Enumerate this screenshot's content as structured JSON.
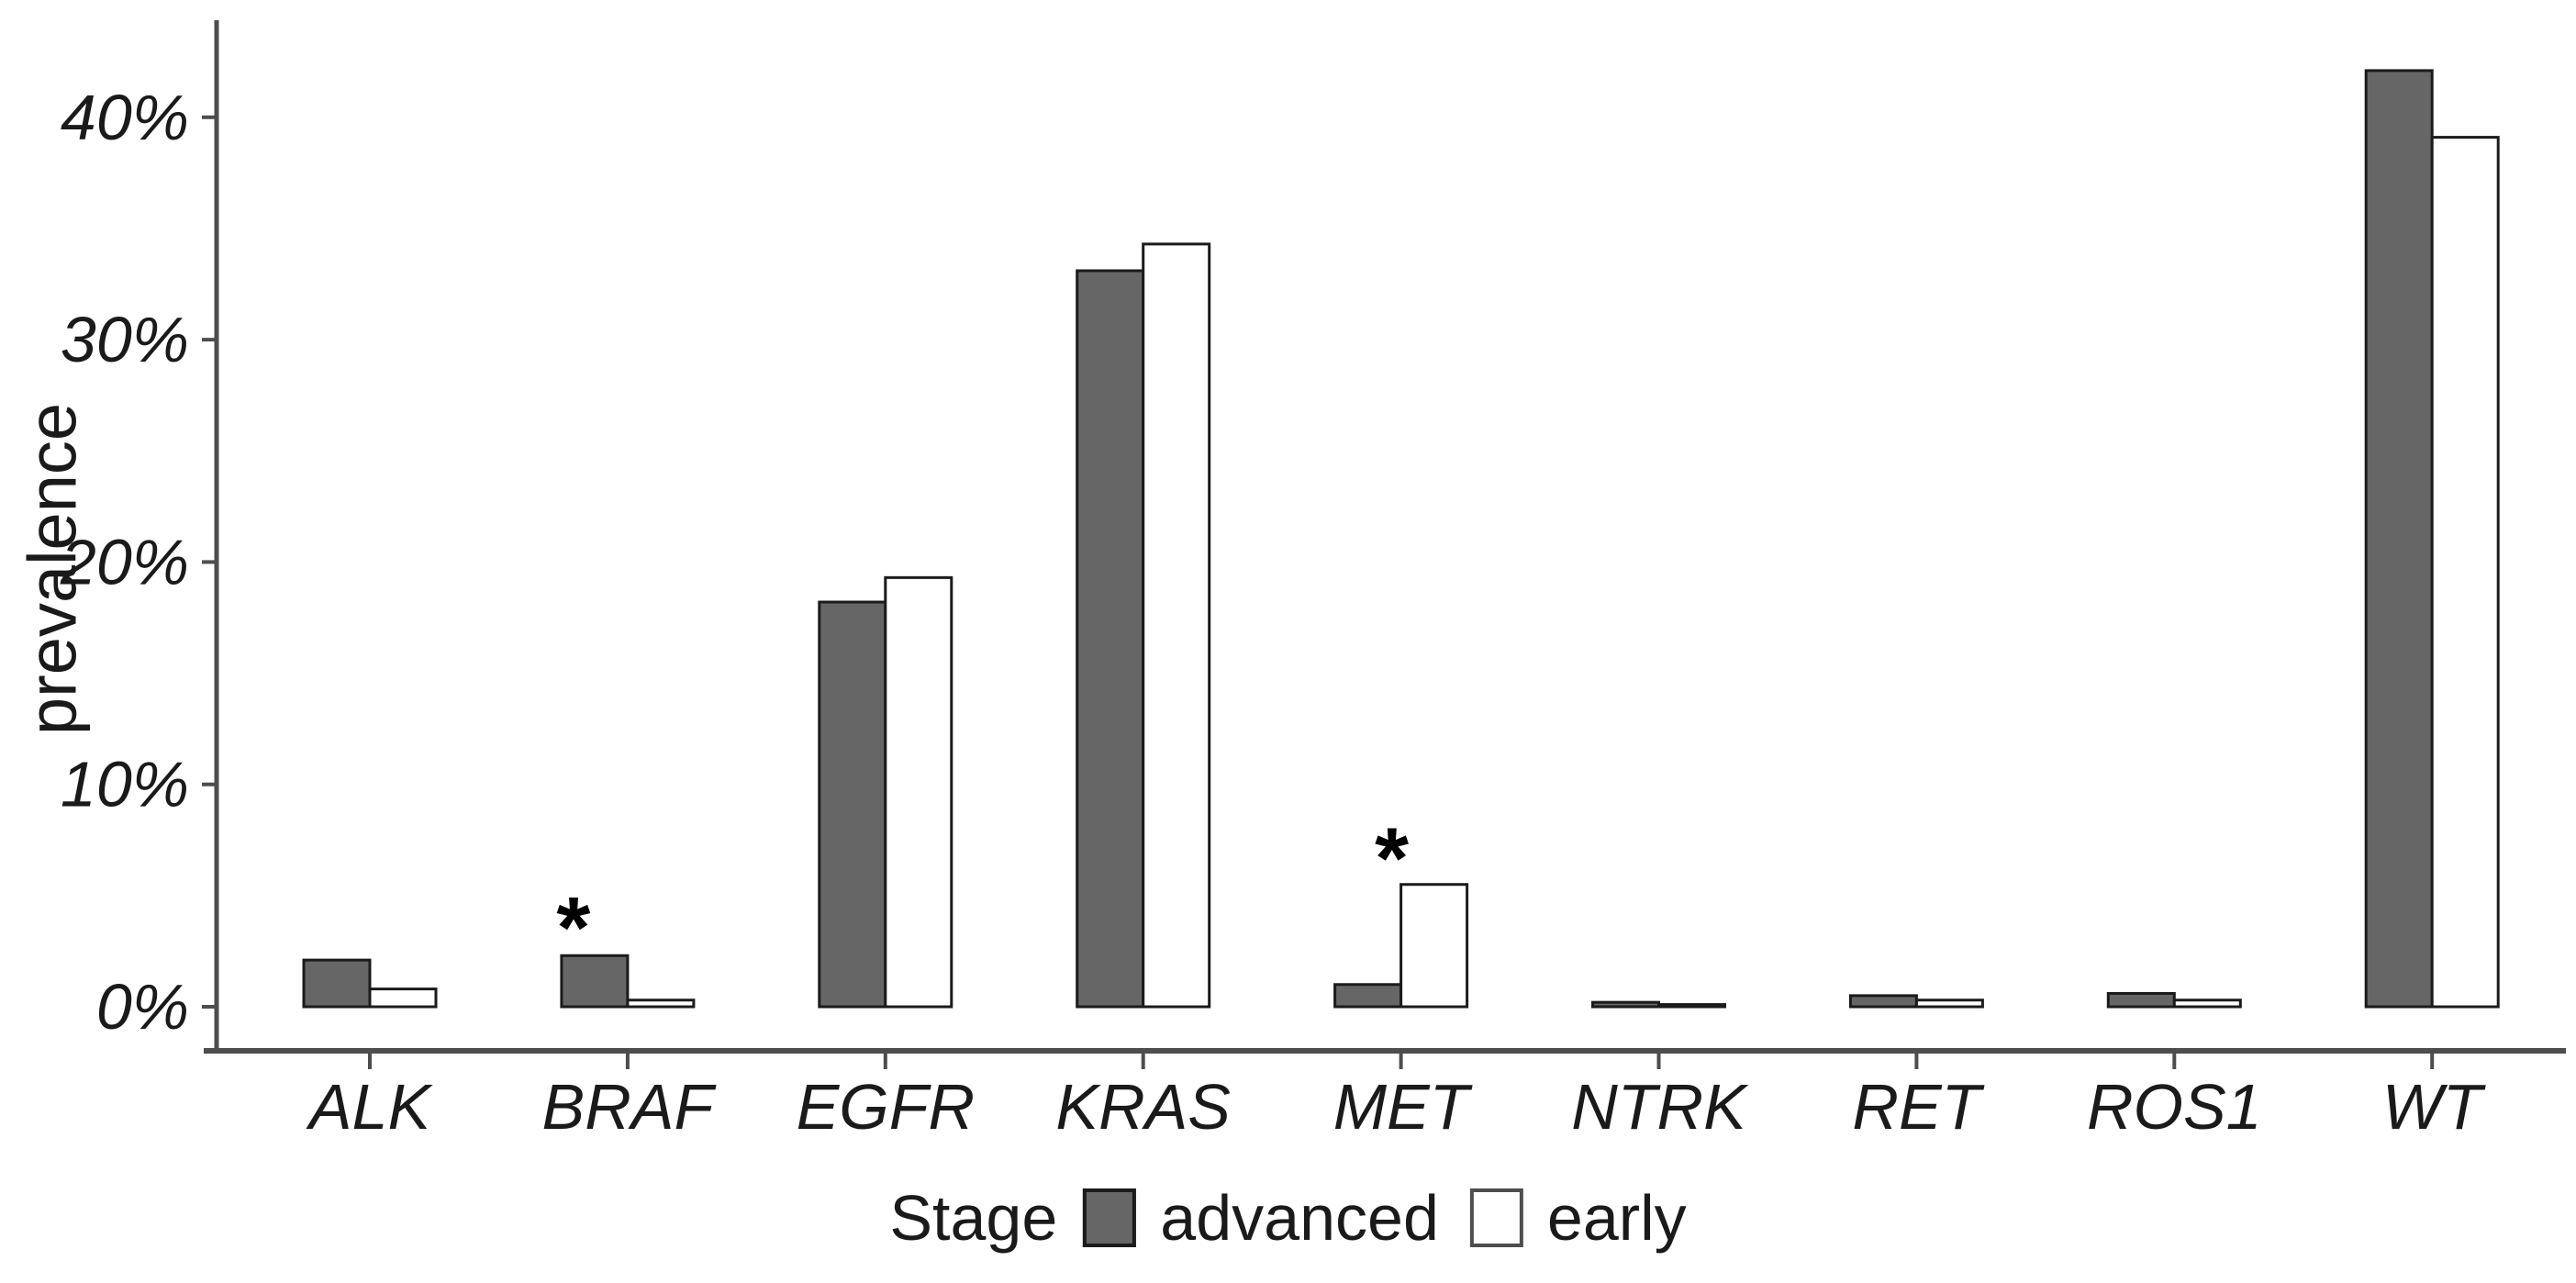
{
  "chart_data": {
    "type": "bar",
    "title": "",
    "xlabel": "",
    "ylabel": "prevalence",
    "categories": [
      "ALK",
      "BRAF",
      "EGFR",
      "KRAS",
      "MET",
      "NTRK",
      "RET",
      "ROS1",
      "WT"
    ],
    "series": [
      {
        "name": "advanced",
        "color": "#666666",
        "values": [
          2.1,
          2.3,
          18.2,
          33.1,
          1.0,
          0.2,
          0.5,
          0.6,
          42.1
        ]
      },
      {
        "name": "early",
        "color": "#ffffff",
        "values": [
          0.8,
          0.3,
          19.3,
          34.3,
          5.5,
          0.1,
          0.3,
          0.3,
          39.1
        ]
      }
    ],
    "y_ticks": [
      {
        "value": 0,
        "label": "0%"
      },
      {
        "value": 10,
        "label": "10%"
      },
      {
        "value": 20,
        "label": "20%"
      },
      {
        "value": 30,
        "label": "30%"
      },
      {
        "value": 40,
        "label": "40%"
      }
    ],
    "ylim": [
      0,
      44.3
    ],
    "grid": false,
    "legend_position": "bottom",
    "annotations": [
      {
        "text": "*",
        "category": "BRAF",
        "dx": -59,
        "y_pct": 4.3
      },
      {
        "text": "*",
        "category": "MET",
        "dx": -10,
        "y_pct": 7.4
      }
    ]
  },
  "legend": {
    "title": "Stage",
    "items": [
      {
        "label": "advanced",
        "color": "#666666"
      },
      {
        "label": "early",
        "color": "#ffffff"
      }
    ]
  },
  "colors": {
    "bar_stroke": "#1b1b1b",
    "axis_line": "#4d4d4d",
    "text": "#1a1a1a"
  }
}
